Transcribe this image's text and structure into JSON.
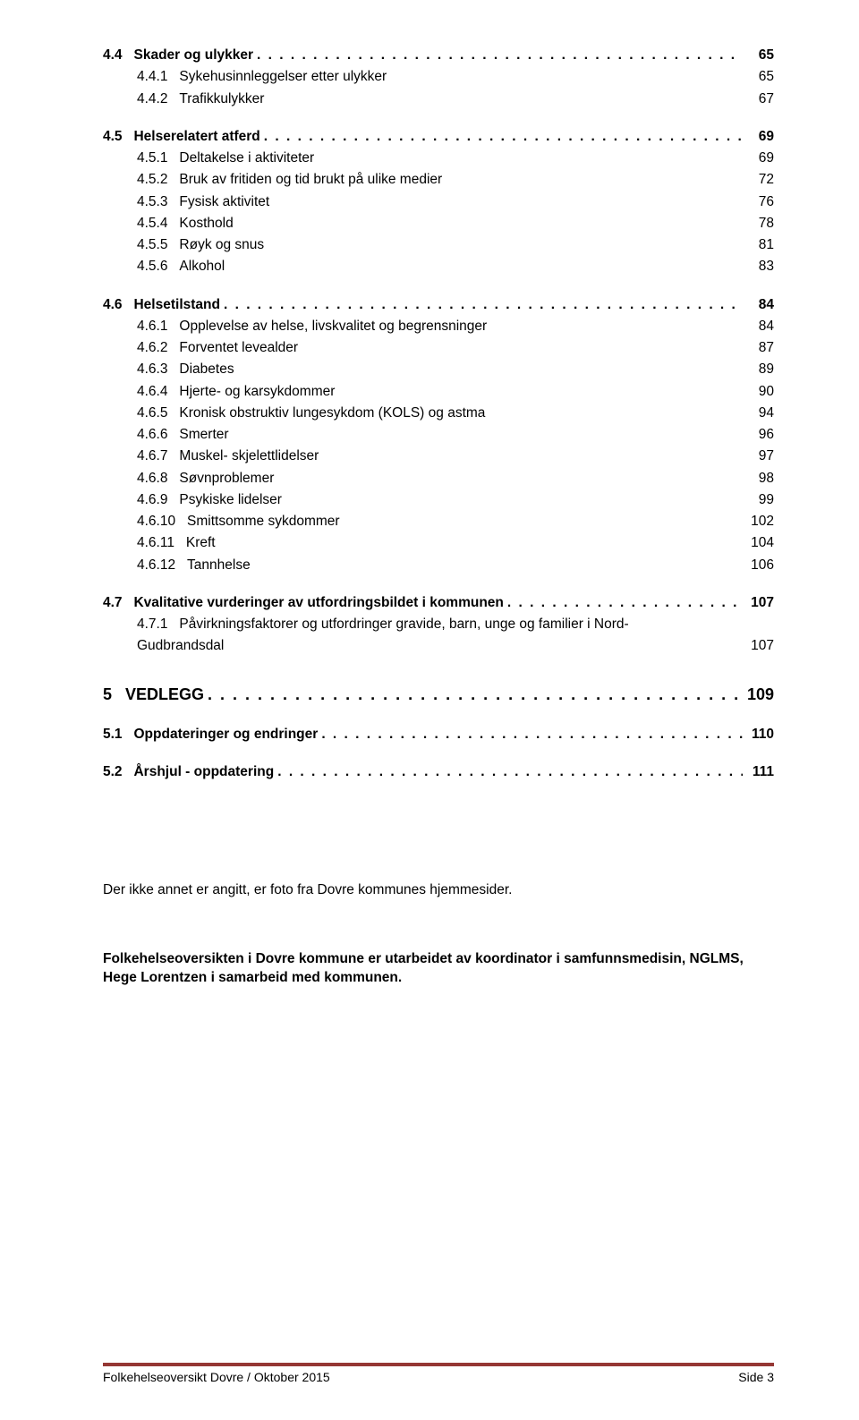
{
  "dots_fill": ". . . . . . . . . . . . . . . . . . . . . . . . . . . . . . . . . . . . . . . . . . . . . . . . . . . . . . . . . . . . . . . . . . . . . . . . . . . . . . . . . . . . . . . . . . . . . . . . . . . . . . . . . . . . . . . . . .",
  "toc": [
    {
      "type": "bold_dotted",
      "num": "4.4",
      "label": "Skader og ulykker",
      "page": "65"
    },
    {
      "type": "sub",
      "num": "4.4.1",
      "label": "Sykehusinnleggelser etter ulykker",
      "page": "65"
    },
    {
      "type": "sub",
      "num": "4.4.2",
      "label": "Trafikkulykker",
      "page": "67"
    },
    {
      "type": "spacer_med"
    },
    {
      "type": "bold_dotted",
      "num": "4.5",
      "label": "Helserelatert atferd",
      "page": "69"
    },
    {
      "type": "sub",
      "num": "4.5.1",
      "label": "Deltakelse i aktiviteter",
      "page": "69"
    },
    {
      "type": "sub",
      "num": "4.5.2",
      "label": "Bruk av fritiden og tid brukt på ulike medier",
      "page": "72"
    },
    {
      "type": "sub",
      "num": "4.5.3",
      "label": "Fysisk aktivitet",
      "page": "76"
    },
    {
      "type": "sub",
      "num": "4.5.4",
      "label": "Kosthold",
      "page": "78"
    },
    {
      "type": "sub",
      "num": "4.5.5",
      "label": "Røyk og snus",
      "page": "81"
    },
    {
      "type": "sub",
      "num": "4.5.6",
      "label": "Alkohol",
      "page": "83"
    },
    {
      "type": "spacer_med"
    },
    {
      "type": "bold_dotted",
      "num": "4.6",
      "label": "Helsetilstand",
      "page": "84"
    },
    {
      "type": "sub",
      "num": "4.6.1",
      "label": "Opplevelse av helse, livskvalitet og begrensninger",
      "page": "84"
    },
    {
      "type": "sub",
      "num": "4.6.2",
      "label": "Forventet levealder",
      "page": "87"
    },
    {
      "type": "sub",
      "num": "4.6.3",
      "label": "Diabetes",
      "page": "89"
    },
    {
      "type": "sub",
      "num": "4.6.4",
      "label": "Hjerte- og karsykdommer",
      "page": "90"
    },
    {
      "type": "sub",
      "num": "4.6.5",
      "label": "Kronisk obstruktiv lungesykdom (KOLS) og astma",
      "page": "94"
    },
    {
      "type": "sub",
      "num": "4.6.6",
      "label": "Smerter",
      "page": "96"
    },
    {
      "type": "sub",
      "num": "4.6.7",
      "label": "Muskel- skjelettlidelser",
      "page": "97"
    },
    {
      "type": "sub",
      "num": "4.6.8",
      "label": "Søvnproblemer",
      "page": "98"
    },
    {
      "type": "sub",
      "num": "4.6.9",
      "label": "Psykiske lidelser",
      "page": "99"
    },
    {
      "type": "sub",
      "num": "4.6.10",
      "label": "Smittsomme sykdommer",
      "page": "102"
    },
    {
      "type": "sub",
      "num": "4.6.11",
      "label": "Kreft",
      "page": "104"
    },
    {
      "type": "sub",
      "num": "4.6.12",
      "label": "Tannhelse",
      "page": "106"
    },
    {
      "type": "spacer_med"
    },
    {
      "type": "bold_dotted",
      "num": "4.7",
      "label": "Kvalitative vurderinger av utfordringsbildet i kommunen",
      "page": "107"
    },
    {
      "type": "sub_wrap",
      "num": "4.7.1",
      "label_line1": "Påvirkningsfaktorer og utfordringer gravide, barn, unge og familier i Nord-",
      "label_line2": "Gudbrandsdal",
      "page": "107"
    },
    {
      "type": "spacer_large"
    },
    {
      "type": "chapter",
      "num": "5",
      "label": "VEDLEGG",
      "page": "109"
    },
    {
      "type": "spacer_med"
    },
    {
      "type": "bold_dotted",
      "num": "5.1",
      "label": "Oppdateringer og endringer",
      "page": "110"
    },
    {
      "type": "spacer_med"
    },
    {
      "type": "bold_dotted",
      "num": "5.2",
      "label": "Årshjul - oppdatering",
      "page": "111"
    }
  ],
  "body_text": "Der ikke annet er angitt, er foto fra Dovre kommunes hjemmesider.",
  "body_text2": "Folkehelseoversikten i Dovre kommune er utarbeidet av koordinator i samfunnsmedisin, NGLMS, Hege Lorentzen i samarbeid med kommunen.",
  "footer": {
    "line_color": "#953734",
    "left": "Folkehelseoversikt Dovre / Oktober 2015",
    "right": "Side 3"
  }
}
